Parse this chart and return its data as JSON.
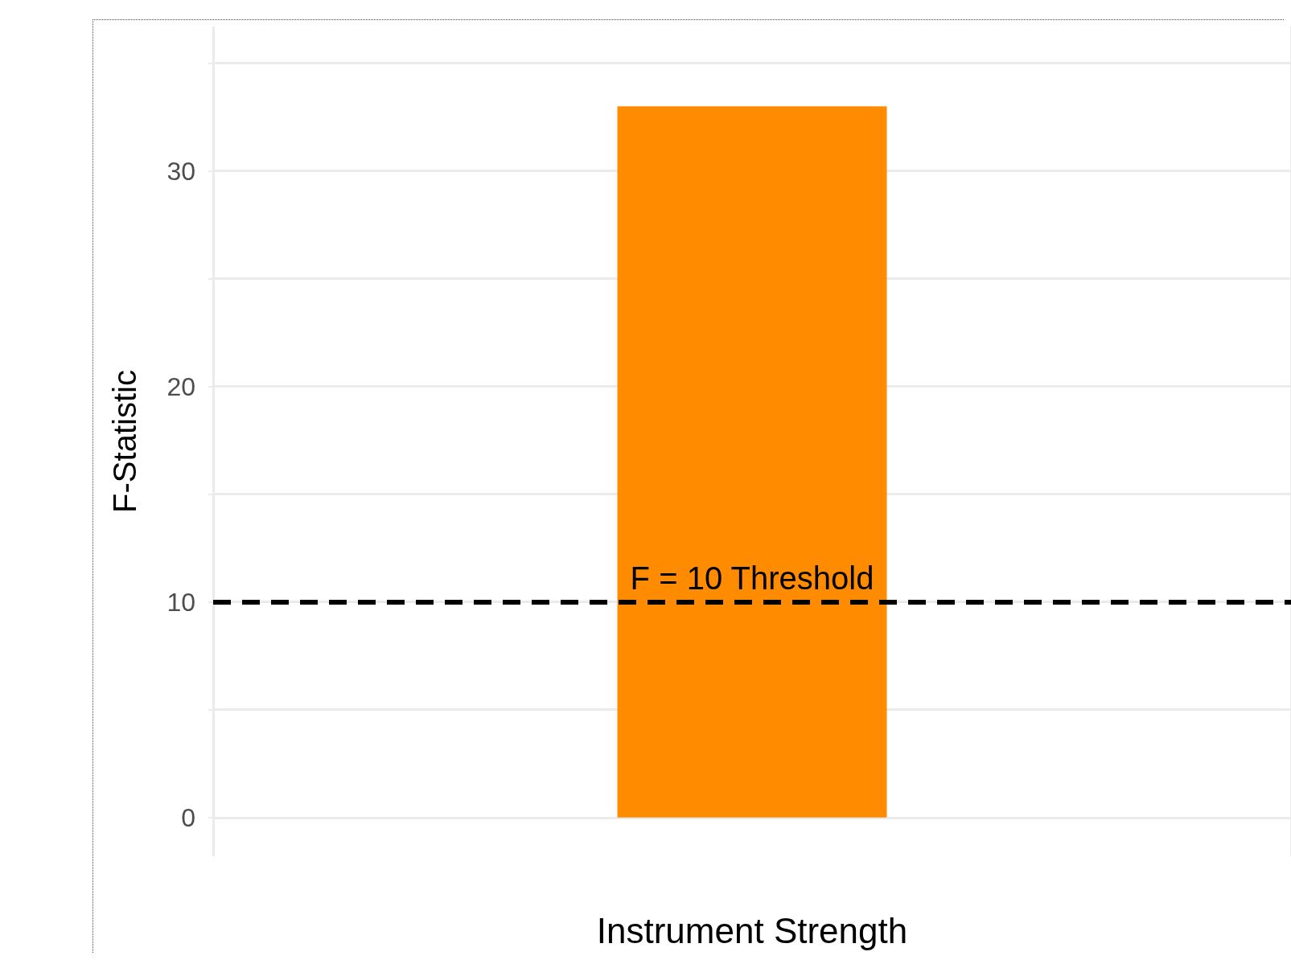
{
  "chart_data": {
    "type": "bar",
    "xlabel": "Instrument Strength",
    "ylabel": "F-Statistic",
    "categories": [
      null
    ],
    "series": [
      {
        "color": "#ff8c00",
        "values": [
          33
        ]
      }
    ],
    "ylim": [
      -1.8,
      36.7
    ],
    "yticks": [
      0,
      {
        "value": 5,
        "label": null
      },
      10,
      {
        "value": 15,
        "label": null
      },
      20,
      {
        "value": 25,
        "label": null
      },
      30,
      {
        "value": 35,
        "label": null
      }
    ],
    "ref_lines": [
      {
        "axis": "y",
        "value": 10,
        "label": "F = 10 Threshold",
        "color": "#000000",
        "line_style": "dashed"
      }
    ],
    "grid": true
  }
}
